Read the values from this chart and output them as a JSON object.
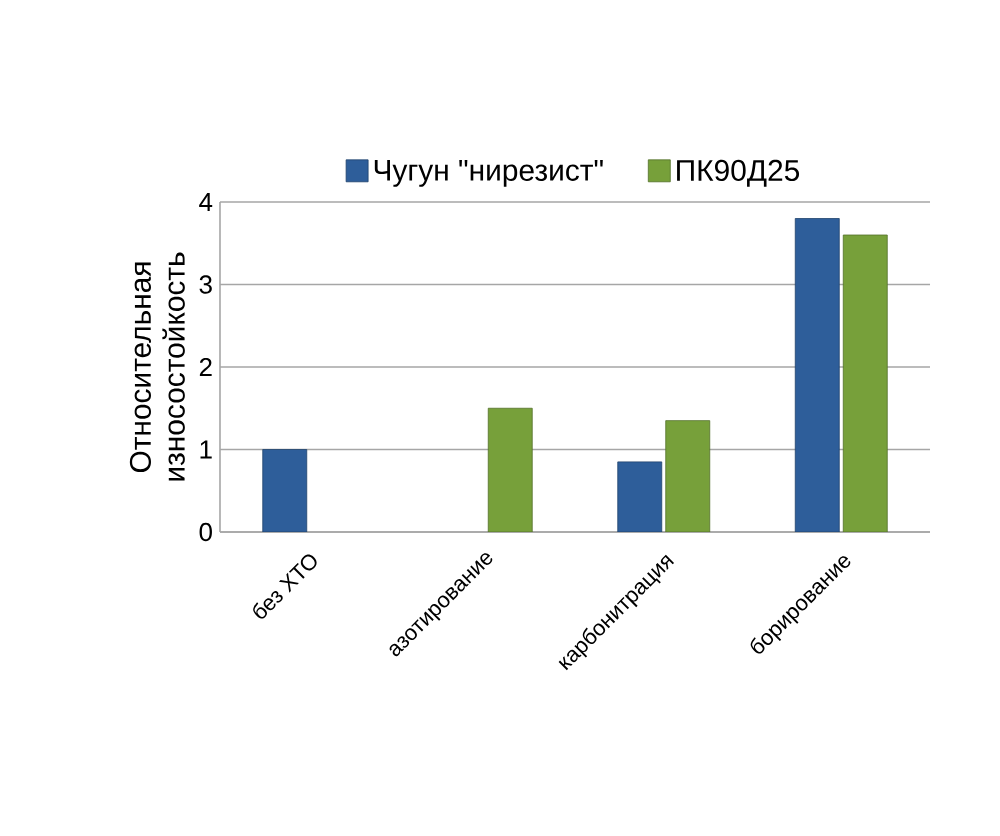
{
  "chart_data": {
    "type": "bar",
    "ylabel": "Относительная износостойкость",
    "categories": [
      "без ХТО",
      "азотирование",
      "карбонитрация",
      "борирование"
    ],
    "series": [
      {
        "name": "Чугун \"нирезист\"",
        "color": "#2e5e9a",
        "values": [
          1.0,
          null,
          0.85,
          3.8
        ]
      },
      {
        "name": "ПК90Д25",
        "color": "#77a03a",
        "values": [
          null,
          1.5,
          1.35,
          3.6
        ]
      }
    ],
    "ylim": [
      0,
      4
    ],
    "yticks": [
      0,
      1,
      2,
      3,
      4
    ],
    "grid": "y",
    "legend": "top"
  }
}
